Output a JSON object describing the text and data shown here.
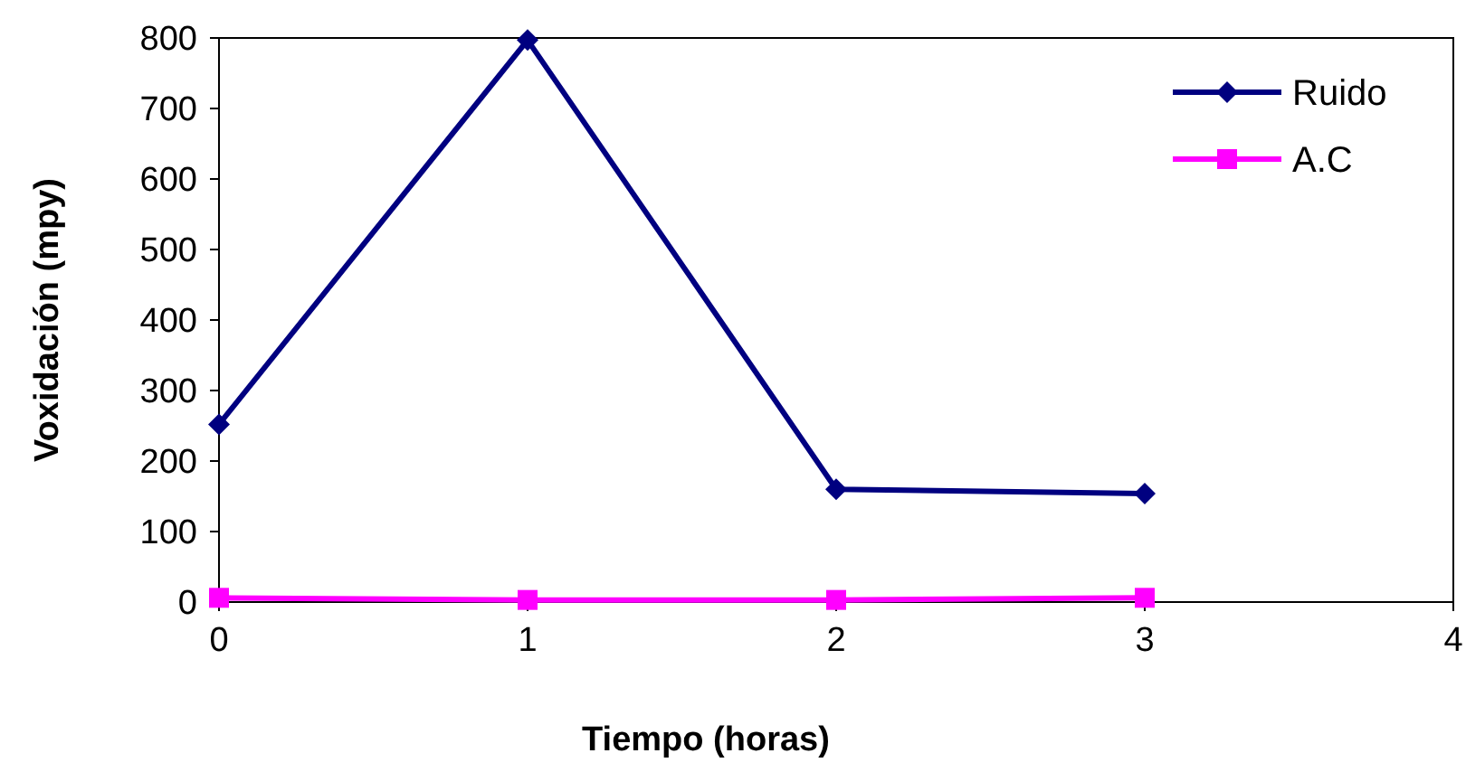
{
  "chart_data": {
    "type": "line",
    "xlabel": "Tiempo (horas)",
    "ylabel": "Voxidación (mpy)",
    "x": [
      0,
      1,
      2,
      3
    ],
    "series": [
      {
        "name": "Ruido",
        "color": "#000080",
        "marker": "diamond",
        "values": [
          252,
          797,
          160,
          154
        ]
      },
      {
        "name": "A.C",
        "color": "#ff00ff",
        "marker": "square",
        "values": [
          6,
          3,
          3,
          6
        ]
      }
    ],
    "xlim": [
      0,
      4
    ],
    "xticks": [
      0,
      1,
      2,
      3,
      4
    ],
    "ylim": [
      0,
      800
    ],
    "yticks": [
      0,
      100,
      200,
      300,
      400,
      500,
      600,
      700,
      800
    ],
    "grid": false,
    "legend": "top right",
    "line_style": "solid"
  }
}
